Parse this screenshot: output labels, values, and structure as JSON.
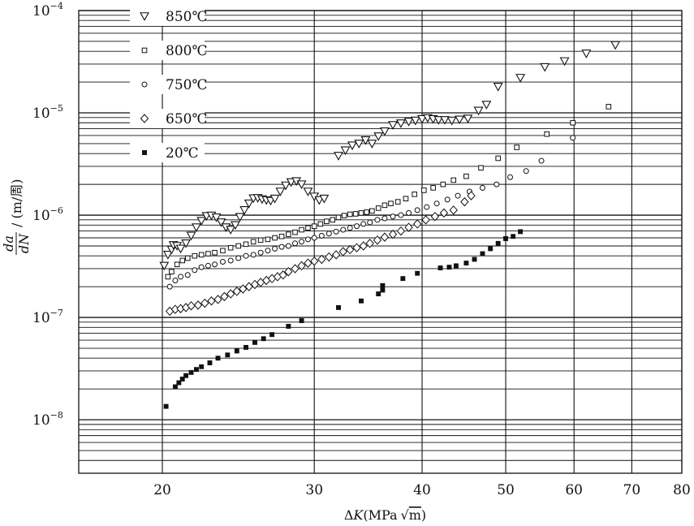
{
  "chart_data": {
    "type": "scatter",
    "x_scale": "log",
    "y_scale": "log",
    "xlabel": {
      "delta": "Δ",
      "symbol": "K",
      "unit_open": "(MPa",
      "sqrt": "√",
      "sqrt_arg": "m",
      "unit_close": ")"
    },
    "ylabel": {
      "numerator": "da",
      "denominator": "dN",
      "unit": "/ (m/周)"
    },
    "xlim": [
      16,
      80
    ],
    "ylim": [
      3e-09,
      0.0001
    ],
    "x_ticks": [
      {
        "value": 20,
        "label": "20"
      },
      {
        "value": 30,
        "label": "30"
      },
      {
        "value": 40,
        "label": "40"
      },
      {
        "value": 50,
        "label": "50"
      },
      {
        "value": 60,
        "label": "60"
      },
      {
        "value": 70,
        "label": "70"
      },
      {
        "value": 80,
        "label": "80"
      }
    ],
    "y_ticks": [
      {
        "value": 1e-08,
        "base": "10",
        "exp": "−8"
      },
      {
        "value": 1e-07,
        "base": "10",
        "exp": "−7"
      },
      {
        "value": 1e-06,
        "base": "10",
        "exp": "−6"
      },
      {
        "value": 1e-05,
        "base": "10",
        "exp": "−5"
      },
      {
        "value": 0.0001,
        "base": "10",
        "exp": "−4"
      }
    ],
    "grid": {
      "horizontal": true,
      "vertical": true
    },
    "legend_position": "top-left",
    "series": [
      {
        "name": "850℃",
        "marker": "triangle-down",
        "points": [
          [
            20.1,
            3.2e-07
          ],
          [
            20.3,
            4.1e-07
          ],
          [
            20.5,
            4.6e-07
          ],
          [
            20.6,
            5.1e-07
          ],
          [
            20.8,
            5e-07
          ],
          [
            21.0,
            4.7e-07
          ],
          [
            21.3,
            5.3e-07
          ],
          [
            21.6,
            6.3e-07
          ],
          [
            21.9,
            7.6e-07
          ],
          [
            22.2,
            8.8e-07
          ],
          [
            22.5,
            9.8e-07
          ],
          [
            22.8,
            9.9e-07
          ],
          [
            23.1,
            9.5e-07
          ],
          [
            23.4,
            8.5e-07
          ],
          [
            23.7,
            7.6e-07
          ],
          [
            24.0,
            7.2e-07
          ],
          [
            24.3,
            8e-07
          ],
          [
            24.6,
            9.6e-07
          ],
          [
            24.9,
            1.12e-06
          ],
          [
            25.2,
            1.3e-06
          ],
          [
            25.5,
            1.46e-06
          ],
          [
            25.8,
            1.47e-06
          ],
          [
            26.1,
            1.43e-06
          ],
          [
            26.4,
            1.4e-06
          ],
          [
            26.7,
            1.38e-06
          ],
          [
            27.0,
            1.45e-06
          ],
          [
            27.4,
            1.7e-06
          ],
          [
            27.8,
            1.95e-06
          ],
          [
            28.2,
            2.1e-06
          ],
          [
            28.6,
            2.15e-06
          ],
          [
            29.0,
            2e-06
          ],
          [
            29.5,
            1.7e-06
          ],
          [
            30.0,
            1.52e-06
          ],
          [
            30.4,
            1.4e-06
          ],
          [
            30.8,
            1.45e-06
          ],
          [
            32.0,
            3.8e-06
          ],
          [
            32.6,
            4.3e-06
          ],
          [
            33.2,
            4.8e-06
          ],
          [
            33.8,
            5e-06
          ],
          [
            34.4,
            5.4e-06
          ],
          [
            35.0,
            5e-06
          ],
          [
            35.6,
            5.9e-06
          ],
          [
            36.2,
            6.6e-06
          ],
          [
            37.0,
            7.6e-06
          ],
          [
            37.8,
            7.9e-06
          ],
          [
            38.6,
            8.2e-06
          ],
          [
            39.3,
            8.4e-06
          ],
          [
            40.0,
            8.7e-06
          ],
          [
            40.6,
            8.9e-06
          ],
          [
            41.2,
            8.7e-06
          ],
          [
            41.8,
            8.5e-06
          ],
          [
            42.5,
            8.5e-06
          ],
          [
            43.3,
            8.4e-06
          ],
          [
            44.2,
            8.6e-06
          ],
          [
            45.2,
            8.8e-06
          ],
          [
            46.5,
            1.05e-05
          ],
          [
            47.5,
            1.2e-05
          ],
          [
            49.0,
            1.8e-05
          ],
          [
            52.0,
            2.2e-05
          ],
          [
            55.5,
            2.8e-05
          ],
          [
            58.5,
            3.2e-05
          ],
          [
            62.0,
            3.8e-05
          ],
          [
            67.0,
            4.6e-05
          ]
        ]
      },
      {
        "name": "800℃",
        "marker": "square-open",
        "points": [
          [
            20.3,
            2.5e-07
          ],
          [
            20.5,
            2.8e-07
          ],
          [
            20.8,
            3.3e-07
          ],
          [
            21.1,
            3.6e-07
          ],
          [
            21.4,
            3.8e-07
          ],
          [
            21.8,
            4e-07
          ],
          [
            22.2,
            4.1e-07
          ],
          [
            22.6,
            4.2e-07
          ],
          [
            23.0,
            4.3e-07
          ],
          [
            23.5,
            4.5e-07
          ],
          [
            24.0,
            4.8e-07
          ],
          [
            24.5,
            5e-07
          ],
          [
            25.0,
            5.2e-07
          ],
          [
            25.5,
            5.5e-07
          ],
          [
            26.0,
            5.7e-07
          ],
          [
            26.5,
            5.8e-07
          ],
          [
            27.0,
            6e-07
          ],
          [
            27.5,
            6.2e-07
          ],
          [
            28.0,
            6.5e-07
          ],
          [
            28.5,
            6.8e-07
          ],
          [
            29.0,
            7.2e-07
          ],
          [
            29.5,
            7.5e-07
          ],
          [
            30.0,
            7.8e-07
          ],
          [
            30.5,
            8.2e-07
          ],
          [
            31.0,
            8.7e-07
          ],
          [
            31.5,
            9e-07
          ],
          [
            32.0,
            9.5e-07
          ],
          [
            32.5,
            9.9e-07
          ],
          [
            33.0,
            1.02e-06
          ],
          [
            33.5,
            1.03e-06
          ],
          [
            34.0,
            1.05e-06
          ],
          [
            34.5,
            1.07e-06
          ],
          [
            35.0,
            1.1e-06
          ],
          [
            35.6,
            1.17e-06
          ],
          [
            36.2,
            1.25e-06
          ],
          [
            36.8,
            1.3e-06
          ],
          [
            37.5,
            1.35e-06
          ],
          [
            38.3,
            1.45e-06
          ],
          [
            39.2,
            1.6e-06
          ],
          [
            40.2,
            1.75e-06
          ],
          [
            41.2,
            1.85e-06
          ],
          [
            42.3,
            2e-06
          ],
          [
            43.5,
            2.2e-06
          ],
          [
            45.0,
            2.4e-06
          ],
          [
            46.8,
            2.9e-06
          ],
          [
            49.0,
            3.6e-06
          ],
          [
            51.5,
            4.6e-06
          ],
          [
            55.8,
            6.2e-06
          ],
          [
            59.8,
            8e-06
          ],
          [
            65.8,
            1.15e-05
          ]
        ]
      },
      {
        "name": "750℃",
        "marker": "circle-open",
        "points": [
          [
            20.4,
            2e-07
          ],
          [
            20.7,
            2.3e-07
          ],
          [
            21.0,
            2.5e-07
          ],
          [
            21.4,
            2.6e-07
          ],
          [
            21.8,
            2.9e-07
          ],
          [
            22.2,
            3.1e-07
          ],
          [
            22.6,
            3.2e-07
          ],
          [
            23.0,
            3.3e-07
          ],
          [
            23.5,
            3.5e-07
          ],
          [
            24.0,
            3.6e-07
          ],
          [
            24.5,
            3.8e-07
          ],
          [
            25.0,
            4e-07
          ],
          [
            25.5,
            4.1e-07
          ],
          [
            26.0,
            4.3e-07
          ],
          [
            26.5,
            4.5e-07
          ],
          [
            27.0,
            4.7e-07
          ],
          [
            27.5,
            4.9e-07
          ],
          [
            28.0,
            5e-07
          ],
          [
            28.5,
            5.3e-07
          ],
          [
            29.0,
            5.5e-07
          ],
          [
            29.5,
            5.8e-07
          ],
          [
            30.0,
            6e-07
          ],
          [
            30.6,
            6.3e-07
          ],
          [
            31.2,
            6.6e-07
          ],
          [
            31.8,
            6.9e-07
          ],
          [
            32.4,
            7.2e-07
          ],
          [
            33.0,
            7.5e-07
          ],
          [
            33.6,
            7.8e-07
          ],
          [
            34.2,
            8.2e-07
          ],
          [
            34.8,
            8.5e-07
          ],
          [
            35.5,
            9e-07
          ],
          [
            36.2,
            9.3e-07
          ],
          [
            37.0,
            9.7e-07
          ],
          [
            37.8,
            1e-06
          ],
          [
            38.6,
            1.05e-06
          ],
          [
            39.5,
            1.12e-06
          ],
          [
            40.5,
            1.2e-06
          ],
          [
            41.6,
            1.3e-06
          ],
          [
            42.8,
            1.42e-06
          ],
          [
            44.0,
            1.55e-06
          ],
          [
            45.4,
            1.7e-06
          ],
          [
            47.0,
            1.85e-06
          ],
          [
            48.8,
            2e-06
          ],
          [
            50.6,
            2.35e-06
          ],
          [
            52.8,
            2.7e-06
          ],
          [
            55.0,
            3.4e-06
          ],
          [
            59.8,
            5.7e-06
          ]
        ]
      },
      {
        "name": "650℃",
        "marker": "diamond-open",
        "points": [
          [
            20.4,
            1.15e-07
          ],
          [
            20.7,
            1.2e-07
          ],
          [
            21.0,
            1.22e-07
          ],
          [
            21.3,
            1.25e-07
          ],
          [
            21.6,
            1.3e-07
          ],
          [
            22.0,
            1.32e-07
          ],
          [
            22.4,
            1.38e-07
          ],
          [
            22.8,
            1.45e-07
          ],
          [
            23.2,
            1.5e-07
          ],
          [
            23.6,
            1.6e-07
          ],
          [
            24.0,
            1.7e-07
          ],
          [
            24.4,
            1.8e-07
          ],
          [
            24.8,
            1.9e-07
          ],
          [
            25.2,
            2e-07
          ],
          [
            25.6,
            2.1e-07
          ],
          [
            26.0,
            2.2e-07
          ],
          [
            26.4,
            2.3e-07
          ],
          [
            26.8,
            2.4e-07
          ],
          [
            27.2,
            2.5e-07
          ],
          [
            27.6,
            2.6e-07
          ],
          [
            28.0,
            2.8e-07
          ],
          [
            28.5,
            3e-07
          ],
          [
            29.0,
            3.2e-07
          ],
          [
            29.5,
            3.4e-07
          ],
          [
            30.0,
            3.55e-07
          ],
          [
            30.6,
            3.7e-07
          ],
          [
            31.2,
            3.9e-07
          ],
          [
            31.8,
            4.1e-07
          ],
          [
            32.4,
            4.4e-07
          ],
          [
            33.0,
            4.6e-07
          ],
          [
            33.6,
            4.8e-07
          ],
          [
            34.2,
            5e-07
          ],
          [
            34.8,
            5.3e-07
          ],
          [
            35.5,
            5.7e-07
          ],
          [
            36.2,
            6.1e-07
          ],
          [
            37.0,
            6.5e-07
          ],
          [
            37.8,
            7e-07
          ],
          [
            38.6,
            7.6e-07
          ],
          [
            39.5,
            8.2e-07
          ],
          [
            40.4,
            9e-07
          ],
          [
            41.4,
            9.7e-07
          ],
          [
            42.4,
            1.05e-06
          ],
          [
            43.5,
            1.12e-06
          ],
          [
            44.8,
            1.35e-06
          ],
          [
            45.6,
            1.55e-06
          ]
        ]
      },
      {
        "name": "20℃",
        "marker": "square-filled",
        "points": [
          [
            20.2,
            1.35e-08
          ],
          [
            20.7,
            2.1e-08
          ],
          [
            20.9,
            2.3e-08
          ],
          [
            21.1,
            2.5e-08
          ],
          [
            21.3,
            2.7e-08
          ],
          [
            21.6,
            2.9e-08
          ],
          [
            21.9,
            3.1e-08
          ],
          [
            22.2,
            3.3e-08
          ],
          [
            22.7,
            3.6e-08
          ],
          [
            23.2,
            4e-08
          ],
          [
            23.8,
            4.3e-08
          ],
          [
            24.4,
            4.7e-08
          ],
          [
            25.0,
            5.1e-08
          ],
          [
            25.6,
            5.7e-08
          ],
          [
            26.2,
            6.2e-08
          ],
          [
            26.8,
            6.8e-08
          ],
          [
            28.0,
            8.2e-08
          ],
          [
            29.0,
            9.3e-08
          ],
          [
            32.0,
            1.25e-07
          ],
          [
            34.0,
            1.45e-07
          ],
          [
            35.6,
            1.7e-07
          ],
          [
            36.0,
            1.85e-07
          ],
          [
            36.0,
            2.05e-07
          ],
          [
            38.0,
            2.4e-07
          ],
          [
            39.5,
            2.7e-07
          ],
          [
            42.0,
            3.05e-07
          ],
          [
            43.0,
            3.1e-07
          ],
          [
            43.8,
            3.2e-07
          ],
          [
            45.0,
            3.4e-07
          ],
          [
            46.0,
            3.7e-07
          ],
          [
            47.0,
            4.2e-07
          ],
          [
            48.0,
            4.7e-07
          ],
          [
            49.0,
            5.3e-07
          ],
          [
            50.0,
            5.9e-07
          ],
          [
            51.0,
            6.2e-07
          ],
          [
            52.0,
            6.9e-07
          ]
        ]
      }
    ]
  }
}
